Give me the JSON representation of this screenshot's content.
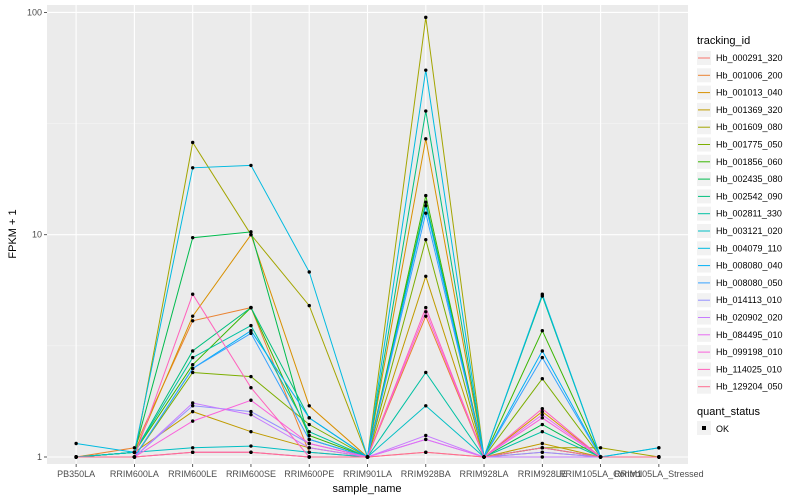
{
  "chart_data": {
    "type": "line",
    "xlabel": "sample_name",
    "ylabel": "FPKM + 1",
    "y_scale": "log10",
    "ylim": [
      0.93,
      108
    ],
    "y_ticks": [
      1,
      10,
      100
    ],
    "y_tick_labels": [
      "1",
      "10",
      "100"
    ],
    "categories": [
      "PB350LA",
      "RRIM600LA",
      "RRIM600LE",
      "RRIM600SE",
      "RRIM600PE",
      "RRIM901LA",
      "RRIM928BA",
      "RRIM928LA",
      "RRIM928LE",
      "RRIM105LA_Control",
      "RRIM105LA_Stressed"
    ],
    "category_labels": [
      "PB350LA",
      "RRIM600LA",
      "RRIM600LE",
      "RRIM600SE",
      "RRIM600PE",
      "RRIM901LA",
      "RRIM928BA",
      "RRIM928LA",
      "RRIM928LE",
      "RRIM105LA_Control",
      "RRIM105LA_Stressed"
    ],
    "legend": {
      "title": "tracking_id",
      "shape_title": "quant_status",
      "shape_entries": [
        "OK"
      ]
    },
    "series": [
      {
        "name": "Hb_000291_320",
        "color": "#F8766D",
        "values": [
          1.0,
          1.0,
          1.05,
          1.05,
          1.0,
          1.0,
          1.05,
          1.0,
          1.05,
          1.0,
          1.0
        ]
      },
      {
        "name": "Hb_001006_200",
        "color": "#EA8331",
        "values": [
          1.0,
          1.1,
          4.1,
          4.7,
          1.05,
          1.0,
          4.3,
          1.0,
          1.1,
          1.0,
          1.0
        ]
      },
      {
        "name": "Hb_001013_040",
        "color": "#D89000",
        "values": [
          1.0,
          1.05,
          4.3,
          10.0,
          1.7,
          1.0,
          27.0,
          1.0,
          1.6,
          1.0,
          1.0
        ]
      },
      {
        "name": "Hb_001369_320",
        "color": "#C09B00",
        "values": [
          1.0,
          1.05,
          1.6,
          1.3,
          1.1,
          1.0,
          6.5,
          1.0,
          1.15,
          1.0,
          1.0
        ]
      },
      {
        "name": "Hb_001609_080",
        "color": "#A3A500",
        "values": [
          1.0,
          1.0,
          26.0,
          10.0,
          4.8,
          1.0,
          95.0,
          1.0,
          1.1,
          1.1,
          1.0
        ]
      },
      {
        "name": "Hb_001775_050",
        "color": "#7CAE00",
        "values": [
          1.0,
          1.0,
          2.4,
          2.3,
          1.4,
          1.0,
          9.5,
          1.0,
          2.25,
          1.0,
          1.0
        ]
      },
      {
        "name": "Hb_001856_060",
        "color": "#39B600",
        "values": [
          1.0,
          1.05,
          2.6,
          4.7,
          1.25,
          1.0,
          15.0,
          1.0,
          3.7,
          1.0,
          1.0
        ]
      },
      {
        "name": "Hb_002435_080",
        "color": "#00BB4E",
        "values": [
          1.0,
          1.05,
          9.7,
          10.3,
          1.2,
          1.0,
          14.0,
          1.0,
          1.4,
          1.0,
          1.0
        ]
      },
      {
        "name": "Hb_002542_090",
        "color": "#00BF7D",
        "values": [
          1.0,
          1.05,
          3.0,
          4.7,
          1.5,
          1.0,
          36.0,
          1.0,
          5.3,
          1.0,
          1.0
        ]
      },
      {
        "name": "Hb_002811_330",
        "color": "#00C1A3",
        "values": [
          1.0,
          1.05,
          2.8,
          3.9,
          1.3,
          1.0,
          2.4,
          1.0,
          1.3,
          1.0,
          1.0
        ]
      },
      {
        "name": "Hb_003121_020",
        "color": "#00BFC4",
        "values": [
          1.0,
          1.05,
          1.1,
          1.12,
          1.05,
          1.0,
          1.7,
          1.0,
          1.1,
          1.0,
          1.1
        ]
      },
      {
        "name": "Hb_004079_110",
        "color": "#00BAE0",
        "values": [
          1.15,
          1.05,
          20.0,
          20.5,
          6.8,
          1.0,
          55.0,
          1.0,
          5.4,
          1.0,
          1.1
        ]
      },
      {
        "name": "Hb_008080_040",
        "color": "#00B0F6",
        "values": [
          1.0,
          1.0,
          2.5,
          3.7,
          1.5,
          1.0,
          13.5,
          1.0,
          3.0,
          1.0,
          1.0
        ]
      },
      {
        "name": "Hb_008080_050",
        "color": "#35A2FF",
        "values": [
          1.0,
          1.0,
          2.5,
          3.6,
          1.2,
          1.0,
          12.5,
          1.0,
          2.8,
          1.0,
          1.0
        ]
      },
      {
        "name": "Hb_014113_010",
        "color": "#9590FF",
        "values": [
          1.0,
          1.0,
          1.7,
          1.6,
          1.15,
          1.0,
          1.2,
          1.0,
          1.05,
          1.0,
          1.0
        ]
      },
      {
        "name": "Hb_020902_020",
        "color": "#C77CFF",
        "values": [
          1.0,
          1.0,
          1.75,
          1.55,
          1.1,
          1.0,
          1.25,
          1.0,
          1.0,
          1.0,
          1.0
        ]
      },
      {
        "name": "Hb_084495_010",
        "color": "#E76BF3",
        "values": [
          1.0,
          1.0,
          1.05,
          1.05,
          1.0,
          1.0,
          1.2,
          1.0,
          1.55,
          1.0,
          1.0
        ]
      },
      {
        "name": "Hb_099198_010",
        "color": "#FA62DB",
        "values": [
          1.0,
          1.0,
          1.45,
          1.8,
          1.15,
          1.0,
          4.5,
          1.0,
          1.5,
          1.0,
          1.0
        ]
      },
      {
        "name": "Hb_114025_010",
        "color": "#FF62BC",
        "values": [
          1.0,
          1.0,
          5.4,
          2.05,
          1.0,
          1.0,
          4.7,
          1.0,
          1.65,
          1.0,
          1.0
        ]
      },
      {
        "name": "Hb_129204_050",
        "color": "#FF6C91",
        "values": [
          1.0,
          1.0,
          1.05,
          1.05,
          1.0,
          1.0,
          1.05,
          1.0,
          1.1,
          1.0,
          1.0
        ]
      }
    ]
  }
}
